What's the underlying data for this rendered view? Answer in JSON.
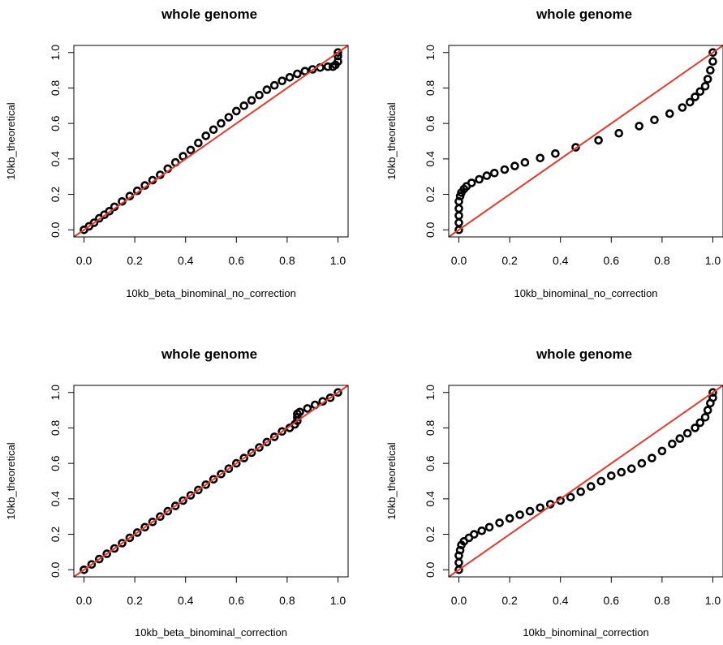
{
  "colors": {
    "points": "#000000",
    "reference_line": "#e8392d",
    "background": "#ffffff"
  },
  "chart_data": [
    {
      "type": "scatter",
      "title": "whole genome",
      "xlabel": "10kb_beta_binominal_no_correction",
      "ylabel": "10kb_theoretical",
      "xlim": [
        0,
        1
      ],
      "ylim": [
        0,
        1
      ],
      "xticks": [
        "0.0",
        "0.2",
        "0.4",
        "0.6",
        "0.8",
        "1.0"
      ],
      "yticks": [
        "0.0",
        "0.2",
        "0.4",
        "0.6",
        "0.8",
        "1.0"
      ],
      "grid": false,
      "reference_line": {
        "slope": 1,
        "intercept": 0
      },
      "points": {
        "x": [
          0.0,
          0.02,
          0.04,
          0.06,
          0.08,
          0.1,
          0.12,
          0.15,
          0.18,
          0.21,
          0.24,
          0.27,
          0.3,
          0.33,
          0.36,
          0.39,
          0.42,
          0.45,
          0.48,
          0.51,
          0.54,
          0.57,
          0.6,
          0.63,
          0.66,
          0.69,
          0.72,
          0.75,
          0.78,
          0.81,
          0.84,
          0.87,
          0.9,
          0.93,
          0.96,
          0.98,
          0.99,
          1.0,
          1.0,
          1.0
        ],
        "y": [
          0.0,
          0.02,
          0.04,
          0.065,
          0.085,
          0.105,
          0.13,
          0.16,
          0.19,
          0.22,
          0.25,
          0.28,
          0.31,
          0.345,
          0.38,
          0.415,
          0.45,
          0.49,
          0.53,
          0.565,
          0.6,
          0.635,
          0.67,
          0.7,
          0.73,
          0.76,
          0.79,
          0.815,
          0.84,
          0.86,
          0.88,
          0.895,
          0.905,
          0.915,
          0.92,
          0.92,
          0.93,
          0.95,
          0.98,
          1.0
        ]
      }
    },
    {
      "type": "scatter",
      "title": "whole genome",
      "xlabel": "10kb_binominal_no_correction",
      "ylabel": "10kb_theoretical",
      "xlim": [
        0,
        1
      ],
      "ylim": [
        0,
        1
      ],
      "xticks": [
        "0.0",
        "0.2",
        "0.4",
        "0.6",
        "0.8",
        "1.0"
      ],
      "yticks": [
        "0.0",
        "0.2",
        "0.4",
        "0.6",
        "0.8",
        "1.0"
      ],
      "grid": false,
      "reference_line": {
        "slope": 1,
        "intercept": 0
      },
      "points": {
        "x": [
          0.0,
          0.0,
          0.0,
          0.0,
          0.0,
          0.005,
          0.01,
          0.02,
          0.03,
          0.05,
          0.08,
          0.11,
          0.14,
          0.18,
          0.22,
          0.26,
          0.32,
          0.38,
          0.46,
          0.55,
          0.63,
          0.71,
          0.77,
          0.83,
          0.88,
          0.91,
          0.93,
          0.95,
          0.97,
          0.98,
          0.99,
          1.0,
          1.0
        ],
        "y": [
          0.0,
          0.04,
          0.08,
          0.12,
          0.16,
          0.19,
          0.21,
          0.23,
          0.245,
          0.265,
          0.285,
          0.305,
          0.32,
          0.34,
          0.36,
          0.38,
          0.405,
          0.43,
          0.465,
          0.505,
          0.545,
          0.585,
          0.62,
          0.655,
          0.69,
          0.72,
          0.75,
          0.78,
          0.81,
          0.85,
          0.9,
          0.95,
          1.0
        ]
      }
    },
    {
      "type": "scatter",
      "title": "whole genome",
      "xlabel": "10kb_beta_binominal_correction",
      "ylabel": "10kb_theoretical",
      "xlim": [
        0,
        1
      ],
      "ylim": [
        0,
        1
      ],
      "xticks": [
        "0.0",
        "0.2",
        "0.4",
        "0.6",
        "0.8",
        "1.0"
      ],
      "yticks": [
        "0.0",
        "0.2",
        "0.4",
        "0.6",
        "0.8",
        "1.0"
      ],
      "grid": false,
      "reference_line": {
        "slope": 1,
        "intercept": 0
      },
      "points": {
        "x": [
          0.0,
          0.03,
          0.06,
          0.09,
          0.12,
          0.15,
          0.18,
          0.21,
          0.24,
          0.27,
          0.3,
          0.33,
          0.36,
          0.39,
          0.42,
          0.45,
          0.48,
          0.51,
          0.54,
          0.57,
          0.6,
          0.63,
          0.66,
          0.69,
          0.72,
          0.75,
          0.78,
          0.81,
          0.83,
          0.84,
          0.84,
          0.84,
          0.85,
          0.88,
          0.91,
          0.94,
          0.97,
          1.0
        ],
        "y": [
          0.0,
          0.03,
          0.06,
          0.09,
          0.12,
          0.15,
          0.18,
          0.21,
          0.24,
          0.27,
          0.3,
          0.33,
          0.36,
          0.39,
          0.42,
          0.45,
          0.48,
          0.51,
          0.54,
          0.57,
          0.6,
          0.63,
          0.66,
          0.69,
          0.72,
          0.75,
          0.78,
          0.8,
          0.82,
          0.84,
          0.86,
          0.88,
          0.89,
          0.91,
          0.93,
          0.95,
          0.97,
          1.0
        ]
      }
    },
    {
      "type": "scatter",
      "title": "whole genome",
      "xlabel": "10kb_binominal_correction",
      "ylabel": "10kb_theoretical",
      "xlim": [
        0,
        1
      ],
      "ylim": [
        0,
        1
      ],
      "xticks": [
        "0.0",
        "0.2",
        "0.4",
        "0.6",
        "0.8",
        "1.0"
      ],
      "yticks": [
        "0.0",
        "0.2",
        "0.4",
        "0.6",
        "0.8",
        "1.0"
      ],
      "grid": false,
      "reference_line": {
        "slope": 1,
        "intercept": 0
      },
      "points": {
        "x": [
          0.0,
          0.0,
          0.0,
          0.005,
          0.01,
          0.02,
          0.04,
          0.06,
          0.09,
          0.12,
          0.16,
          0.2,
          0.24,
          0.28,
          0.32,
          0.36,
          0.4,
          0.44,
          0.48,
          0.52,
          0.56,
          0.6,
          0.64,
          0.68,
          0.72,
          0.76,
          0.8,
          0.84,
          0.87,
          0.9,
          0.93,
          0.95,
          0.97,
          0.98,
          0.99,
          1.0,
          1.0
        ],
        "y": [
          0.0,
          0.04,
          0.08,
          0.11,
          0.14,
          0.16,
          0.18,
          0.2,
          0.22,
          0.24,
          0.265,
          0.29,
          0.31,
          0.33,
          0.35,
          0.37,
          0.39,
          0.41,
          0.44,
          0.47,
          0.5,
          0.53,
          0.55,
          0.57,
          0.6,
          0.63,
          0.67,
          0.71,
          0.74,
          0.77,
          0.8,
          0.83,
          0.86,
          0.9,
          0.94,
          0.97,
          1.0
        ]
      }
    }
  ]
}
